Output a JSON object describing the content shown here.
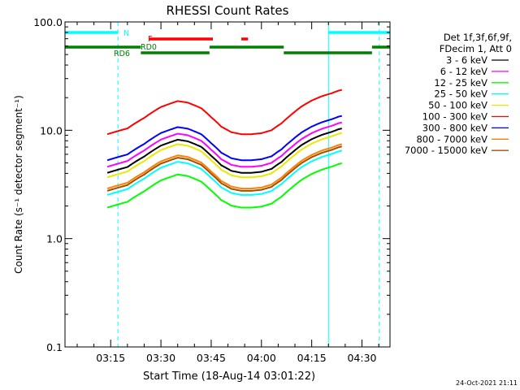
{
  "chart_data": {
    "type": "line",
    "title": "RHESSI Count Rates",
    "xlabel": "Start Time (18-Aug-14 03:01:22)",
    "ylabel": "Count Rate (s⁻¹ detector segment⁻¹)",
    "y_scale": "log",
    "ylim": [
      0.1,
      100.0
    ],
    "y_ticks": [
      "0.1",
      "1.0",
      "10.0",
      "100.0"
    ],
    "x_ticks": [
      "03:15",
      "03:30",
      "03:45",
      "04:00",
      "04:15",
      "04:30"
    ],
    "x_range": [
      "03:01:22",
      "04:38:22"
    ],
    "legend_header": [
      "Det 1f,3f,6f,9f,",
      "FDecim 1, Att 0"
    ],
    "legend_position": "right",
    "series": [
      {
        "name": "3 - 6 keV",
        "color": "#000000",
        "level": 0.88
      },
      {
        "name": "6 - 12 keV",
        "color": "#ff00ff",
        "level": 1.0
      },
      {
        "name": "12 - 25 keV",
        "color": "#00ff00",
        "level": 0.42
      },
      {
        "name": "25 - 50 keV",
        "color": "#00ffff",
        "level": 0.55
      },
      {
        "name": "50 - 100 keV",
        "color": "#e8e800",
        "level": 0.8
      },
      {
        "name": "100 - 300 keV",
        "color": "#ff0000",
        "level": 2.0
      },
      {
        "name": "300 - 800 keV",
        "color": "#0000ff",
        "level": 1.15
      },
      {
        "name": "800 - 7000 keV",
        "color": "#ff8000",
        "level": 0.63
      },
      {
        "name": "7000 - 15000 keV",
        "color": "#a05000",
        "level": 0.6
      }
    ],
    "data_window": [
      "03:14",
      "04:24"
    ],
    "shape_points": [
      [
        "03:14",
        4.6
      ],
      [
        "03:20",
        5.2
      ],
      [
        "03:25",
        6.5
      ],
      [
        "03:30",
        8.2
      ],
      [
        "03:35",
        9.3
      ],
      [
        "03:38",
        9.0
      ],
      [
        "03:42",
        8.0
      ],
      [
        "03:45",
        6.6
      ],
      [
        "03:48",
        5.4
      ],
      [
        "03:51",
        4.8
      ],
      [
        "03:54",
        4.6
      ],
      [
        "03:57",
        4.6
      ],
      [
        "04:00",
        4.7
      ],
      [
        "04:03",
        5.0
      ],
      [
        "04:06",
        5.8
      ],
      [
        "04:09",
        7.0
      ],
      [
        "04:12",
        8.3
      ],
      [
        "04:15",
        9.4
      ],
      [
        "04:18",
        10.3
      ],
      [
        "04:21",
        11.0
      ],
      [
        "04:23",
        11.6
      ],
      [
        "04:24",
        11.8
      ]
    ],
    "event_lines": [
      {
        "time": "03:01:22",
        "style": "solid",
        "color": "#00ffff"
      },
      {
        "time": "03:17:10",
        "style": "dashed",
        "color": "#00ffff"
      },
      {
        "time": "04:20:00",
        "style": "solid",
        "color": "#00ffff"
      },
      {
        "time": "04:35:10",
        "style": "dashed",
        "color": "#00ffff"
      }
    ],
    "flag_bars": [
      {
        "label": "N",
        "color": "#00ffff",
        "row": 1,
        "segments": [
          [
            "03:01:22",
            "03:17:10"
          ],
          [
            "04:20:00",
            "04:38:22"
          ]
        ]
      },
      {
        "label": "F",
        "color": "#ff0000",
        "row": 2,
        "segments": [
          [
            "03:26:30",
            "03:45:30"
          ],
          [
            "03:54:00",
            "03:56:00"
          ]
        ]
      },
      {
        "label": "RD0",
        "color": "#008000",
        "row": 3,
        "segments": [
          [
            "03:01:22",
            "03:24:00"
          ],
          [
            "03:44:30",
            "04:06:40"
          ],
          [
            "04:33:00",
            "04:38:22"
          ]
        ]
      },
      {
        "label": "RD6",
        "color": "#008000",
        "row": 4,
        "segments": [
          [
            "03:24:00",
            "03:44:30"
          ],
          [
            "04:06:40",
            "04:33:00"
          ]
        ]
      }
    ],
    "footer_date": "24-Oct-2021 21:11",
    "grid": false
  }
}
